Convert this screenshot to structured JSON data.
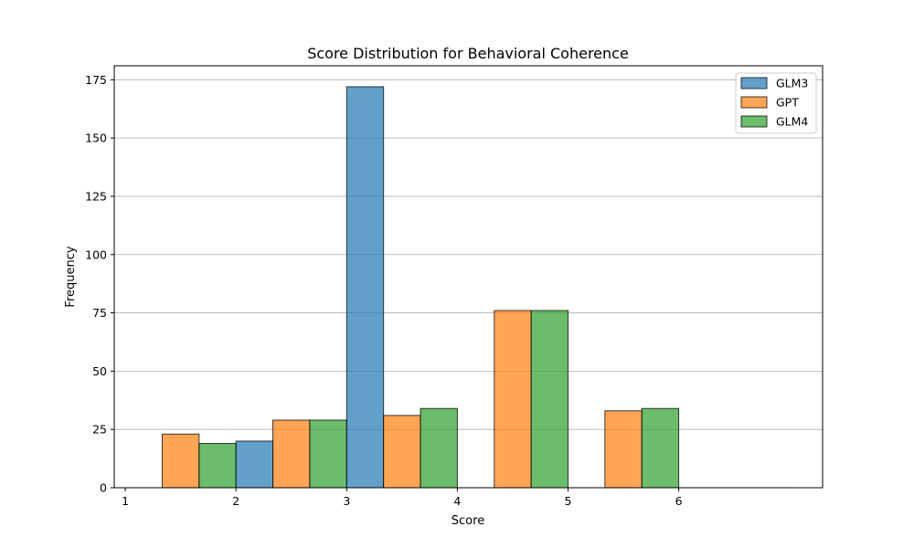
{
  "chart_data": {
    "type": "bar",
    "title": "Score Distribution for Behavioral Coherence",
    "xlabel": "Score",
    "ylabel": "Frequency",
    "xlim": [
      0.9,
      7.3
    ],
    "ylim": [
      0,
      181
    ],
    "x_ticks": [
      "1",
      "2",
      "3",
      "4",
      "5",
      "6"
    ],
    "y_ticks": [
      "0",
      "25",
      "50",
      "75",
      "100",
      "125",
      "150",
      "175"
    ],
    "grid": "horizontal",
    "legend_position": "top-right",
    "bins": [
      {
        "start": 1.0,
        "end": 2.0
      },
      {
        "start": 2.0,
        "end": 3.0
      },
      {
        "start": 3.0,
        "end": 4.0
      },
      {
        "start": 4.0,
        "end": 5.0
      },
      {
        "start": 5.0,
        "end": 6.0
      },
      {
        "start": 6.0,
        "end": 7.0
      }
    ],
    "series": [
      {
        "name": "GLM3",
        "color": "#1f77b4",
        "values": [
          0,
          20,
          172,
          0,
          0,
          0
        ]
      },
      {
        "name": "GPT",
        "color": "#ff7f0e",
        "values": [
          23,
          29,
          31,
          76,
          33,
          0
        ]
      },
      {
        "name": "GLM4",
        "color": "#2ca02c",
        "values": [
          19,
          29,
          34,
          76,
          34,
          0
        ]
      }
    ]
  }
}
